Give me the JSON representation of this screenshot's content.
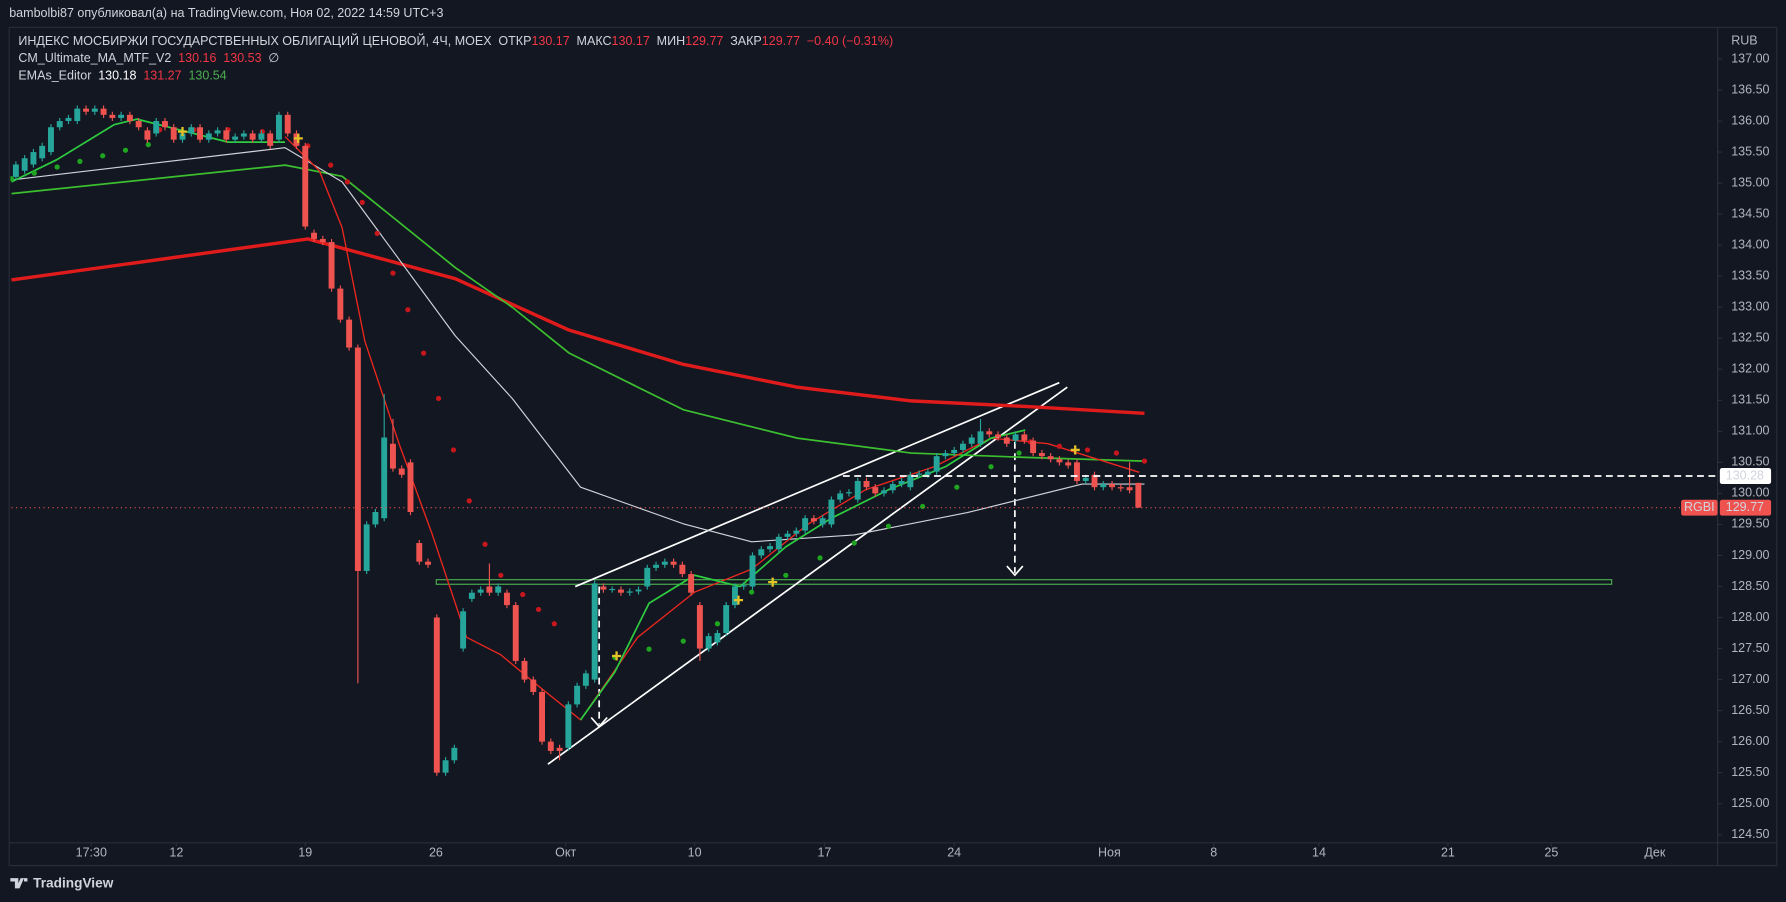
{
  "header": {
    "publisher": "bambolbi87 опубликовал(а) на TradingView.com, Ноя 02, 2022 14:59 UTC+3"
  },
  "footer": {
    "brand": "TradingView"
  },
  "chart_data": {
    "type": "candlestick",
    "title": "ИНДЕКС МОСБИРЖИ ГОСУДАРСТВЕННЫХ ОБЛИГАЦИЙ ЦЕНОВОЙ, 4Ч, MOEX",
    "ohlc_legend": [
      {
        "label": "ОТКР",
        "value": 130.17
      },
      {
        "label": "МАКС",
        "value": 130.17
      },
      {
        "label": "МИН",
        "value": 129.77
      },
      {
        "label": "ЗАКР",
        "value": 129.77
      }
    ],
    "change": "−0.40 (−0.31%)",
    "indicators": [
      {
        "name": "CM_Ultimate_MA_MTF_V2",
        "values": [
          130.16,
          130.53
        ],
        "colors": [
          "#f23645",
          "#f23645"
        ],
        "symbol": "∅"
      },
      {
        "name": "EMAs_Editor",
        "values": [
          130.18,
          131.27,
          130.54
        ],
        "colors": [
          "#ffffff",
          "#f23645",
          "#4caf50"
        ]
      }
    ],
    "currency": "RUB",
    "symbol": "RGBI",
    "last_price": 129.77,
    "level": 130.28,
    "up_color": "#26a69a",
    "down_color": "#ef5350",
    "open": [
      135.1,
      135.2,
      135.3,
      135.4,
      135.5,
      135.9,
      136,
      136,
      136.2,
      136.15,
      136.2,
      136.1,
      136.05,
      136.1,
      136,
      135.85,
      135.8,
      136,
      135.9,
      135.7,
      135.8,
      135.9,
      135.7,
      135.8,
      135.85,
      135.7,
      135.75,
      135.8,
      135.7,
      135.8,
      135.7,
      136.1,
      135.8,
      135.6,
      134.2,
      134.1,
      134.05,
      133.3,
      132.8,
      132.35,
      128.75,
      129.5,
      129.6,
      130.8,
      130.4,
      130.5,
      129.2,
      128.9,
      128,
      125.5,
      125.7,
      127.5,
      128.3,
      128.4,
      128.5,
      128.4,
      128.4,
      128.2,
      127.3,
      127,
      126.8,
      126,
      125.9,
      125.9,
      126.6,
      126.9,
      127,
      128.5,
      128.45,
      128.45,
      128.4,
      128.42,
      128.5,
      128.8,
      128.85,
      128.9,
      128.85,
      128.7,
      128.2,
      127.5,
      127.6,
      127.75,
      128.2,
      128.5,
      128.5,
      129,
      129.1,
      129.1,
      129.3,
      129.35,
      129.4,
      129.6,
      129.5,
      129.5,
      129.9,
      130,
      129.9,
      130.2,
      130.1,
      130,
      130.05,
      130.15,
      130.1,
      130.3,
      130.3,
      130.35,
      130.6,
      130.65,
      130.7,
      130.8,
      130.8,
      131,
      130.95,
      130.9,
      130.85,
      130.95,
      130.85,
      130.65,
      130.6,
      130.55,
      130.5,
      130.5,
      130.2,
      130.3,
      130.1,
      130.15,
      130.1,
      130.1,
      130.17
    ],
    "high": [
      135.35,
      135.45,
      135.55,
      135.65,
      135.95,
      136.05,
      136.1,
      136.25,
      136.25,
      136.25,
      136.25,
      136.15,
      136.15,
      136.15,
      136.05,
      135.9,
      136.05,
      136.05,
      135.95,
      135.85,
      135.95,
      135.95,
      135.85,
      135.9,
      135.9,
      135.8,
      135.85,
      135.85,
      135.85,
      135.85,
      136.15,
      136.15,
      135.85,
      135.65,
      134.25,
      134.15,
      134.1,
      133.35,
      132.85,
      132.4,
      129.55,
      129.75,
      131.6,
      131.2,
      130.45,
      130.55,
      129.25,
      128.95,
      128.05,
      125.75,
      125.95,
      128.15,
      128.45,
      128.5,
      128.87,
      128.55,
      128.45,
      128.25,
      127.35,
      127.05,
      126.85,
      126.05,
      125.95,
      126.65,
      126.95,
      127.15,
      128.6,
      128.55,
      128.5,
      128.5,
      128.47,
      128.5,
      128.85,
      128.9,
      128.95,
      128.95,
      128.9,
      128.75,
      128.25,
      127.75,
      127.8,
      128.25,
      128.55,
      128.57,
      129.05,
      129.15,
      129.2,
      129.35,
      129.4,
      129.45,
      129.65,
      129.65,
      129.65,
      129.95,
      130.05,
      130.07,
      130.25,
      130.25,
      130.15,
      130.1,
      130.2,
      130.25,
      130.35,
      130.37,
      130.4,
      130.65,
      130.7,
      130.75,
      130.85,
      130.95,
      131.2,
      131.05,
      131,
      130.95,
      131,
      131,
      130.9,
      130.7,
      130.65,
      130.6,
      130.55,
      130.55,
      130.3,
      130.35,
      130.2,
      130.2,
      130.15,
      130.5,
      130.17
    ],
    "low": [
      135.05,
      135.15,
      135.25,
      135.35,
      135.45,
      135.85,
      135.95,
      135.95,
      136.1,
      136.1,
      136.05,
      136,
      136,
      135.95,
      135.85,
      135.65,
      135.75,
      135.85,
      135.65,
      135.65,
      135.75,
      135.65,
      135.65,
      135.75,
      135.65,
      135.65,
      135.7,
      135.65,
      135.65,
      135.55,
      135.65,
      135.75,
      135.55,
      134.25,
      134.05,
      134,
      133.25,
      132.75,
      132.3,
      126.94,
      128.7,
      129.45,
      129.55,
      130.35,
      130.25,
      129.65,
      128.85,
      128.8,
      125.45,
      125.45,
      125.65,
      127.45,
      128.25,
      128.35,
      128.35,
      128.35,
      128.15,
      127.25,
      126.95,
      126.75,
      125.95,
      125.8,
      125.7,
      125.85,
      126.55,
      126.85,
      126.95,
      128.4,
      128.4,
      128.35,
      128.35,
      128.37,
      128.45,
      128.75,
      128.8,
      128.8,
      128.65,
      128.35,
      127.3,
      127.45,
      127.55,
      127.7,
      128.15,
      128.45,
      128.45,
      128.95,
      129.05,
      129.05,
      129.25,
      129.3,
      129.35,
      129.5,
      129.45,
      129.45,
      129.85,
      129.95,
      129.85,
      130.05,
      129.95,
      129.95,
      130,
      130.1,
      130.05,
      130.25,
      130.25,
      130.3,
      130.55,
      130.6,
      130.65,
      130.75,
      130.75,
      130.9,
      130.85,
      130.75,
      130.8,
      130.8,
      130.6,
      130.55,
      130.5,
      130.45,
      130.4,
      130.15,
      130.15,
      130.05,
      130.05,
      130.05,
      130.03,
      130,
      129.77
    ],
    "close": [
      135.3,
      135.4,
      135.5,
      135.6,
      135.9,
      136,
      136.05,
      136.2,
      136.15,
      136.2,
      136.1,
      136.05,
      136.1,
      136,
      135.9,
      135.7,
      136,
      135.9,
      135.7,
      135.8,
      135.9,
      135.7,
      135.8,
      135.85,
      135.7,
      135.75,
      135.8,
      135.7,
      135.8,
      135.6,
      136.1,
      135.8,
      135.6,
      134.3,
      134.1,
      134.05,
      133.3,
      132.8,
      132.35,
      128.75,
      129.5,
      129.7,
      130.9,
      130.4,
      130.3,
      129.7,
      128.9,
      128.85,
      125.5,
      125.7,
      125.9,
      128.1,
      128.4,
      128.45,
      128.4,
      128.5,
      128.2,
      127.3,
      127,
      126.8,
      126,
      125.85,
      125.85,
      126.6,
      126.9,
      127.1,
      128.55,
      128.45,
      128.46,
      128.4,
      128.42,
      128.45,
      128.8,
      128.85,
      128.9,
      128.85,
      128.7,
      128.4,
      127.5,
      127.7,
      127.75,
      128.2,
      128.5,
      128.52,
      129,
      129.1,
      129.15,
      129.3,
      129.35,
      129.4,
      129.6,
      129.55,
      129.6,
      129.9,
      130,
      130.02,
      130.2,
      130.1,
      130,
      130.05,
      130.15,
      130.2,
      130.3,
      130.32,
      130.35,
      130.6,
      130.65,
      130.7,
      130.8,
      130.9,
      131,
      130.95,
      130.9,
      130.8,
      130.95,
      130.85,
      130.65,
      130.6,
      130.55,
      130.5,
      130.45,
      130.2,
      130.25,
      130.1,
      130.15,
      130.1,
      130.08,
      130.05,
      129.77
    ],
    "series": [
      {
        "color": "#e01b1b",
        "style": "line",
        "width": 3,
        "x": [
          -0.5,
          33.3,
          50.1,
          63.1,
          76.1,
          89.1,
          102.1,
          115.1,
          128.7
        ],
        "values": [
          133.44,
          134.1,
          133.46,
          132.63,
          132.08,
          131.71,
          131.49,
          131.4,
          131.29
        ]
      },
      {
        "color": "#3cbf2f",
        "style": "line",
        "width": 1.5,
        "x": [
          -0.5,
          30.7,
          37.2,
          50.1,
          56.6,
          63.1,
          76.1,
          89.1,
          102.1,
          115.1,
          128.7
        ],
        "values": [
          134.83,
          135.29,
          135.11,
          133.64,
          133,
          132.26,
          131.35,
          130.89,
          130.65,
          130.58,
          130.52
        ]
      },
      {
        "color": "#d1d4dc",
        "style": "line",
        "width": 1,
        "x": [
          -0.5,
          30.7,
          37.2,
          50.1,
          56.6,
          64.4,
          76.1,
          83.9,
          95.6,
          108.5,
          121.6,
          128.7
        ],
        "values": [
          135.05,
          135.57,
          135.02,
          132.54,
          131.53,
          130.1,
          129.51,
          129.22,
          129.33,
          129.69,
          130.15,
          130.15
        ]
      },
      {
        "color": "#e8271f",
        "style": "line",
        "width": 1.2,
        "x": [
          30.7,
          34.6,
          37.2,
          39.8,
          43.7,
          47.5,
          51.4,
          55.3,
          59.2,
          64.4,
          70.9,
          77.4,
          83.9,
          90.4,
          96.9,
          104.7,
          111.2,
          117.7,
          128.1
        ],
        "values": [
          135.75,
          135.2,
          134.28,
          132.45,
          130.8,
          129.33,
          127.68,
          127.4,
          126.94,
          126.35,
          127.68,
          128.41,
          128.78,
          129.51,
          130.06,
          130.43,
          130.89,
          130.8,
          130.34
        ]
      },
      {
        "color": "#2ecc40",
        "style": "line",
        "width": 1.5,
        "x": [
          -0.5,
          4.7,
          11.2,
          13.8,
          24.2,
          30.7,
          47,
          64.4,
          68.3,
          72.2,
          77.4,
          82.6,
          87.8,
          93,
          99.5,
          106,
          111.2,
          115.1
        ],
        "values": [
          135.02,
          135.38,
          135.94,
          136.03,
          135.66,
          135.66,
          null,
          126.35,
          127.12,
          128.23,
          128.68,
          128.5,
          129.14,
          129.6,
          130.06,
          130.43,
          130.89,
          131.02
        ]
      },
      {
        "color": "#c8161d",
        "style": "dots",
        "x": [
          16.4,
          20.3,
          24.2,
          28.1,
          33.3,
          35.9,
          37.8,
          39.5,
          41.2,
          43,
          44.7,
          46.5,
          48.2,
          49.9,
          51.7,
          53.5,
          55.3,
          57.8,
          59.6,
          61.4,
          115.7,
          119,
          122.2,
          125.5,
          128.7
        ],
        "values": [
          135.86,
          135.86,
          135.86,
          135.83,
          135.6,
          135.29,
          135.02,
          134.69,
          134.19,
          133.55,
          132.96,
          132.26,
          131.53,
          130.7,
          129.88,
          129.18,
          128.68,
          128.37,
          128.13,
          127.9,
          130.83,
          130.76,
          130.7,
          130.65,
          130.52
        ]
      },
      {
        "color": "#1fa51f",
        "style": "dots",
        "x": [
          -0.5,
          2.1,
          4.7,
          7.3,
          9.9,
          12.5,
          15.1,
          68.3,
          72.2,
          76.1,
          80,
          83.9,
          87.8,
          91.7,
          95.6,
          99.5,
          103.4,
          107.3,
          111.2,
          114.4
        ],
        "values": [
          135.07,
          135.16,
          135.26,
          135.35,
          135.44,
          135.53,
          135.62,
          127.36,
          127.49,
          127.62,
          127.9,
          128.41,
          128.68,
          128.96,
          129.2,
          129.47,
          129.79,
          130.1,
          130.43,
          130.65
        ]
      },
      {
        "color": "#e6c229",
        "style": "cross",
        "x": [
          19,
          32.2,
          68.5,
          82.4,
          86.3,
          120.8
        ],
        "values": [
          135.83,
          135.72,
          127.38,
          128.28,
          128.57,
          130.7
        ]
      }
    ],
    "xlim": [
      -0.5,
      194.05
    ],
    "xticks": [
      {
        "value": 8.6,
        "label": "17:30"
      },
      {
        "value": 18.3,
        "label": "12"
      },
      {
        "value": 33,
        "label": "19"
      },
      {
        "value": 47.9,
        "label": "26"
      },
      {
        "value": 62.7,
        "label": "Окт"
      },
      {
        "value": 77.4,
        "label": "10"
      },
      {
        "value": 92.2,
        "label": "17"
      },
      {
        "value": 107,
        "label": "24"
      },
      {
        "value": 124.7,
        "label": "Ноя"
      },
      {
        "value": 136.6,
        "label": "8"
      },
      {
        "value": 148.6,
        "label": "14"
      },
      {
        "value": 163.3,
        "label": "21"
      },
      {
        "value": 175.1,
        "label": "25"
      },
      {
        "value": 186.9,
        "label": "Дек"
      }
    ],
    "ylim": [
      124.37,
      137.51
    ],
    "yticks": [
      {
        "value": 124.5,
        "label": "124.50"
      },
      {
        "value": 125,
        "label": "125.00"
      },
      {
        "value": 125.5,
        "label": "125.50"
      },
      {
        "value": 126,
        "label": "126.00"
      },
      {
        "value": 126.5,
        "label": "126.50"
      },
      {
        "value": 127,
        "label": "127.00"
      },
      {
        "value": 127.5,
        "label": "127.50"
      },
      {
        "value": 128,
        "label": "128.00"
      },
      {
        "value": 128.5,
        "label": "128.50"
      },
      {
        "value": 129,
        "label": "129.00"
      },
      {
        "value": 129.5,
        "label": "129.50"
      },
      {
        "value": 130,
        "label": "130.00"
      },
      {
        "value": 130.5,
        "label": "130.50"
      },
      {
        "value": 131,
        "label": "131.00"
      },
      {
        "value": 131.5,
        "label": "131.50"
      },
      {
        "value": 132,
        "label": "132.00"
      },
      {
        "value": 132.5,
        "label": "132.50"
      },
      {
        "value": 133,
        "label": "133.00"
      },
      {
        "value": 133.5,
        "label": "133.50"
      },
      {
        "value": 134,
        "label": "134.00"
      },
      {
        "value": 134.5,
        "label": "134.50"
      },
      {
        "value": 135,
        "label": "135.00"
      },
      {
        "value": 135.5,
        "label": "135.50"
      },
      {
        "value": 136,
        "label": "136.00"
      },
      {
        "value": 136.5,
        "label": "136.50"
      },
      {
        "value": 137,
        "label": "137.00"
      }
    ],
    "grid": false
  }
}
